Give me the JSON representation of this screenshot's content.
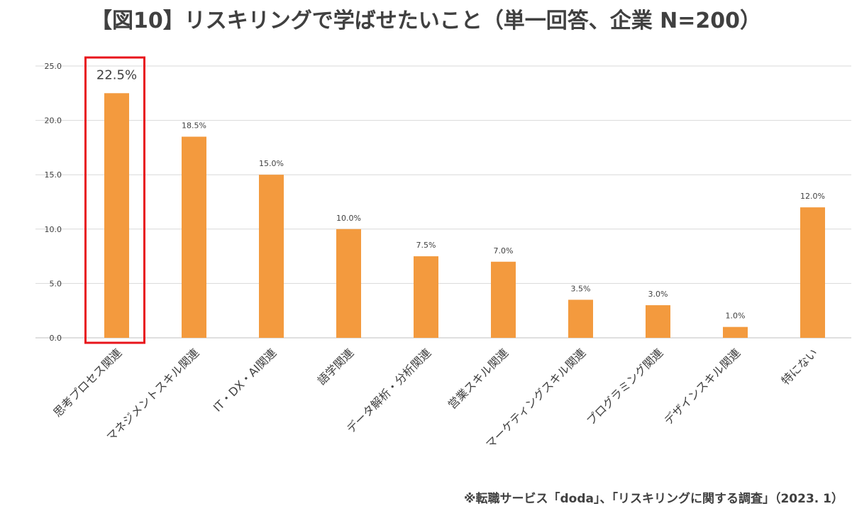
{
  "chart_data": {
    "type": "bar",
    "title": "【図10】リスキリングで学ばせたいこと（単一回答、企業 N=200）",
    "xlabel": "",
    "ylabel": "",
    "ylim": [
      0,
      25
    ],
    "yticks": [
      "0.0",
      "5.0",
      "10.0",
      "15.0",
      "20.0",
      "25.0"
    ],
    "grid": true,
    "categories": [
      "思考プロセス関連",
      "マネジメントスキル関連",
      "IT・DX・AI関連",
      "語学関連",
      "データ解析・分析関連",
      "営業スキル関連",
      "マーケティングスキル関連",
      "プログラミング関連",
      "デザインスキル関連",
      "特にない"
    ],
    "values": [
      22.5,
      18.5,
      15.0,
      10.0,
      7.5,
      7.0,
      3.5,
      3.0,
      1.0,
      12.0
    ],
    "data_labels": [
      "22.5%",
      "18.5%",
      "15.0%",
      "10.0%",
      "7.5%",
      "7.0%",
      "3.5%",
      "3.0%",
      "1.0%",
      "12.0%"
    ],
    "highlight_index": 0,
    "colors": {
      "bar": "#F39A3E",
      "highlight_box": "#E8141B",
      "grid": "#D9D9D9",
      "axis": "#BFBFBF",
      "text": "#404040"
    }
  },
  "footer": {
    "source": "※転職サービス「doda」、「リスキリングに関する調査」（2023. 1）"
  }
}
